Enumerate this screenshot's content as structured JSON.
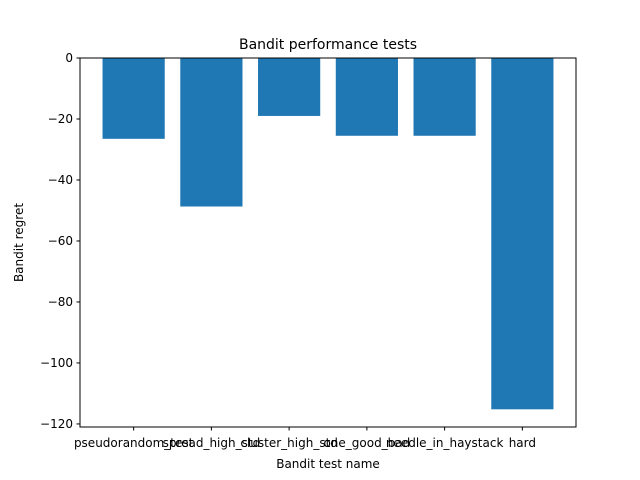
{
  "chart_data": {
    "type": "bar",
    "title": "Bandit performance tests",
    "xlabel": "Bandit test name",
    "ylabel": "Bandit regret",
    "categories": [
      "pseudorandom_test",
      "spread_high_std",
      "cluster_high_std",
      "one_good_bad",
      "needle_in_haystack",
      "hard"
    ],
    "values": [
      -26.5,
      -48.7,
      -19.0,
      -25.5,
      -25.5,
      -115.2
    ],
    "ylim": [
      -121,
      0
    ],
    "yticks": [
      0,
      -20,
      -40,
      -60,
      -80,
      -100,
      -120
    ],
    "ytick_labels": [
      "0",
      "−20",
      "−40",
      "−60",
      "−80",
      "−100",
      "−120"
    ],
    "grid": false,
    "bar_color": "#1f77b4"
  }
}
